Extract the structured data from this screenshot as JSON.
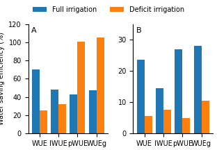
{
  "chart_data": [
    {
      "type": "bar",
      "annotation": "A",
      "y_label": "Water saving efficiency (%)",
      "categories": [
        "WUE",
        "IWUE",
        "pWUE",
        "WUEg"
      ],
      "series": [
        {
          "name": "Full irrigation",
          "values": [
            70,
            48,
            43,
            47
          ]
        },
        {
          "name": "Deficit irrigation",
          "values": [
            25,
            32,
            101,
            105
          ]
        }
      ],
      "ylim": [
        0,
        120
      ],
      "yticks": [
        0,
        20,
        40,
        60,
        80,
        100,
        120
      ]
    },
    {
      "type": "bar",
      "annotation": "B",
      "legend": "upper center",
      "categories": [
        "WUE",
        "IWUE",
        "pWUE",
        "WUEg"
      ],
      "series": [
        {
          "name": "Full irrigation",
          "values": [
            23.5,
            14.5,
            27,
            28
          ]
        },
        {
          "name": "Deficit irrigation",
          "values": [
            5.5,
            7.5,
            5.0,
            10.5
          ]
        }
      ],
      "ylim": [
        0,
        35
      ],
      "yticks": [
        0,
        10,
        20,
        30
      ]
    }
  ]
}
